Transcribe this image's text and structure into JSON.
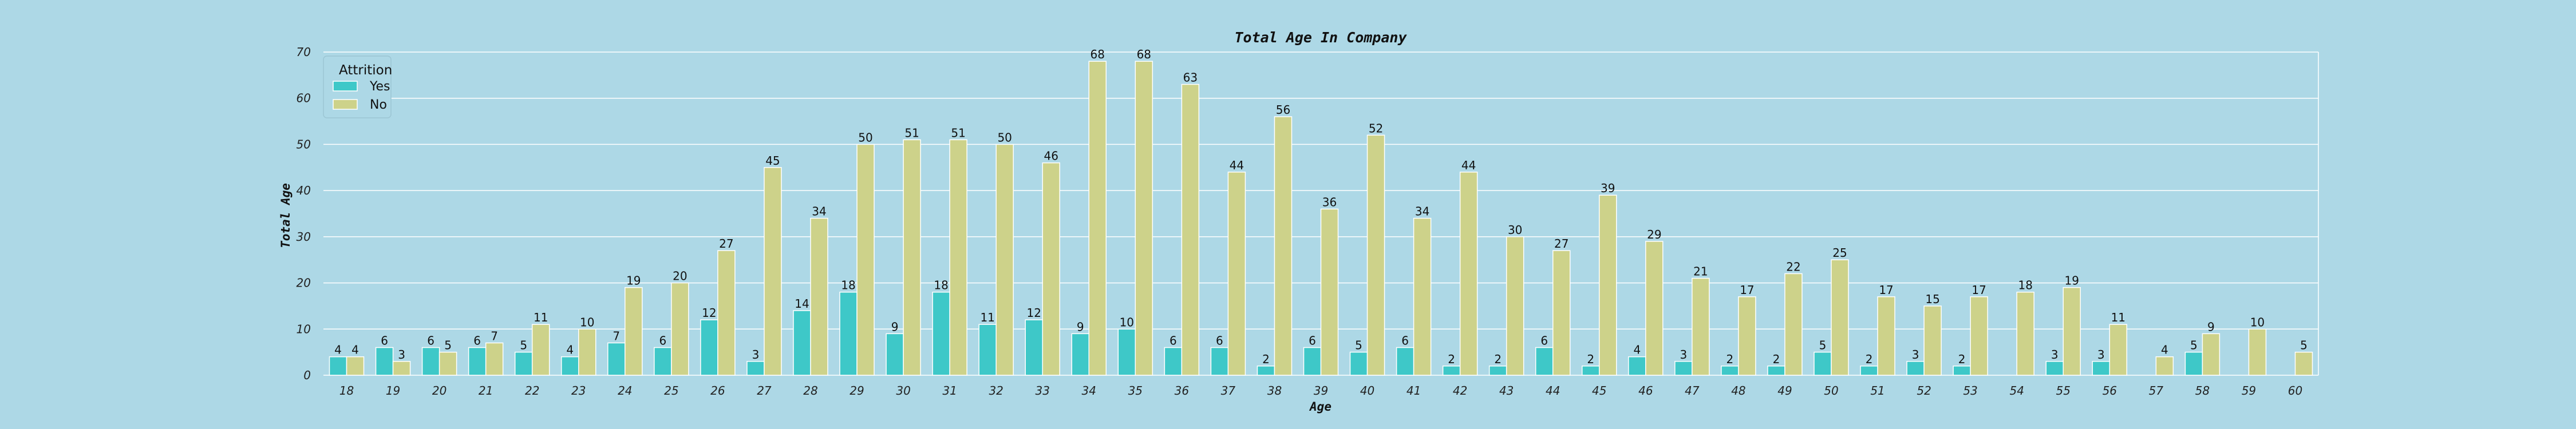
{
  "chart_data": {
    "type": "bar",
    "title": "Total Age In Company",
    "xlabel": "Age",
    "ylabel": "Total Age",
    "ylim": [
      0,
      70
    ],
    "yticks": [
      0,
      10,
      20,
      30,
      40,
      50,
      60,
      70
    ],
    "grid": "horizontal",
    "legend": {
      "title": "Attrition",
      "placement": "top-left"
    },
    "categories": [
      "18",
      "19",
      "20",
      "21",
      "22",
      "23",
      "24",
      "25",
      "26",
      "27",
      "28",
      "29",
      "30",
      "31",
      "32",
      "33",
      "34",
      "35",
      "36",
      "37",
      "38",
      "39",
      "40",
      "41",
      "42",
      "43",
      "44",
      "45",
      "46",
      "47",
      "48",
      "49",
      "50",
      "51",
      "52",
      "53",
      "54",
      "55",
      "56",
      "57",
      "58",
      "59",
      "60"
    ],
    "series": [
      {
        "name": "Yes",
        "color": "#3ec8c8",
        "values": [
          4,
          6,
          6,
          6,
          5,
          4,
          7,
          6,
          12,
          3,
          14,
          18,
          9,
          18,
          11,
          12,
          9,
          10,
          6,
          6,
          2,
          6,
          5,
          6,
          2,
          2,
          6,
          2,
          4,
          3,
          2,
          2,
          5,
          2,
          3,
          2,
          null,
          3,
          3,
          null,
          5,
          null,
          null
        ]
      },
      {
        "name": "No",
        "color": "#cdd28a",
        "values": [
          4,
          3,
          5,
          7,
          11,
          10,
          19,
          20,
          27,
          45,
          34,
          50,
          51,
          51,
          50,
          46,
          68,
          68,
          63,
          44,
          56,
          36,
          52,
          34,
          44,
          30,
          27,
          39,
          29,
          21,
          17,
          22,
          25,
          17,
          15,
          17,
          18,
          19,
          11,
          4,
          9,
          10,
          5
        ]
      }
    ]
  }
}
